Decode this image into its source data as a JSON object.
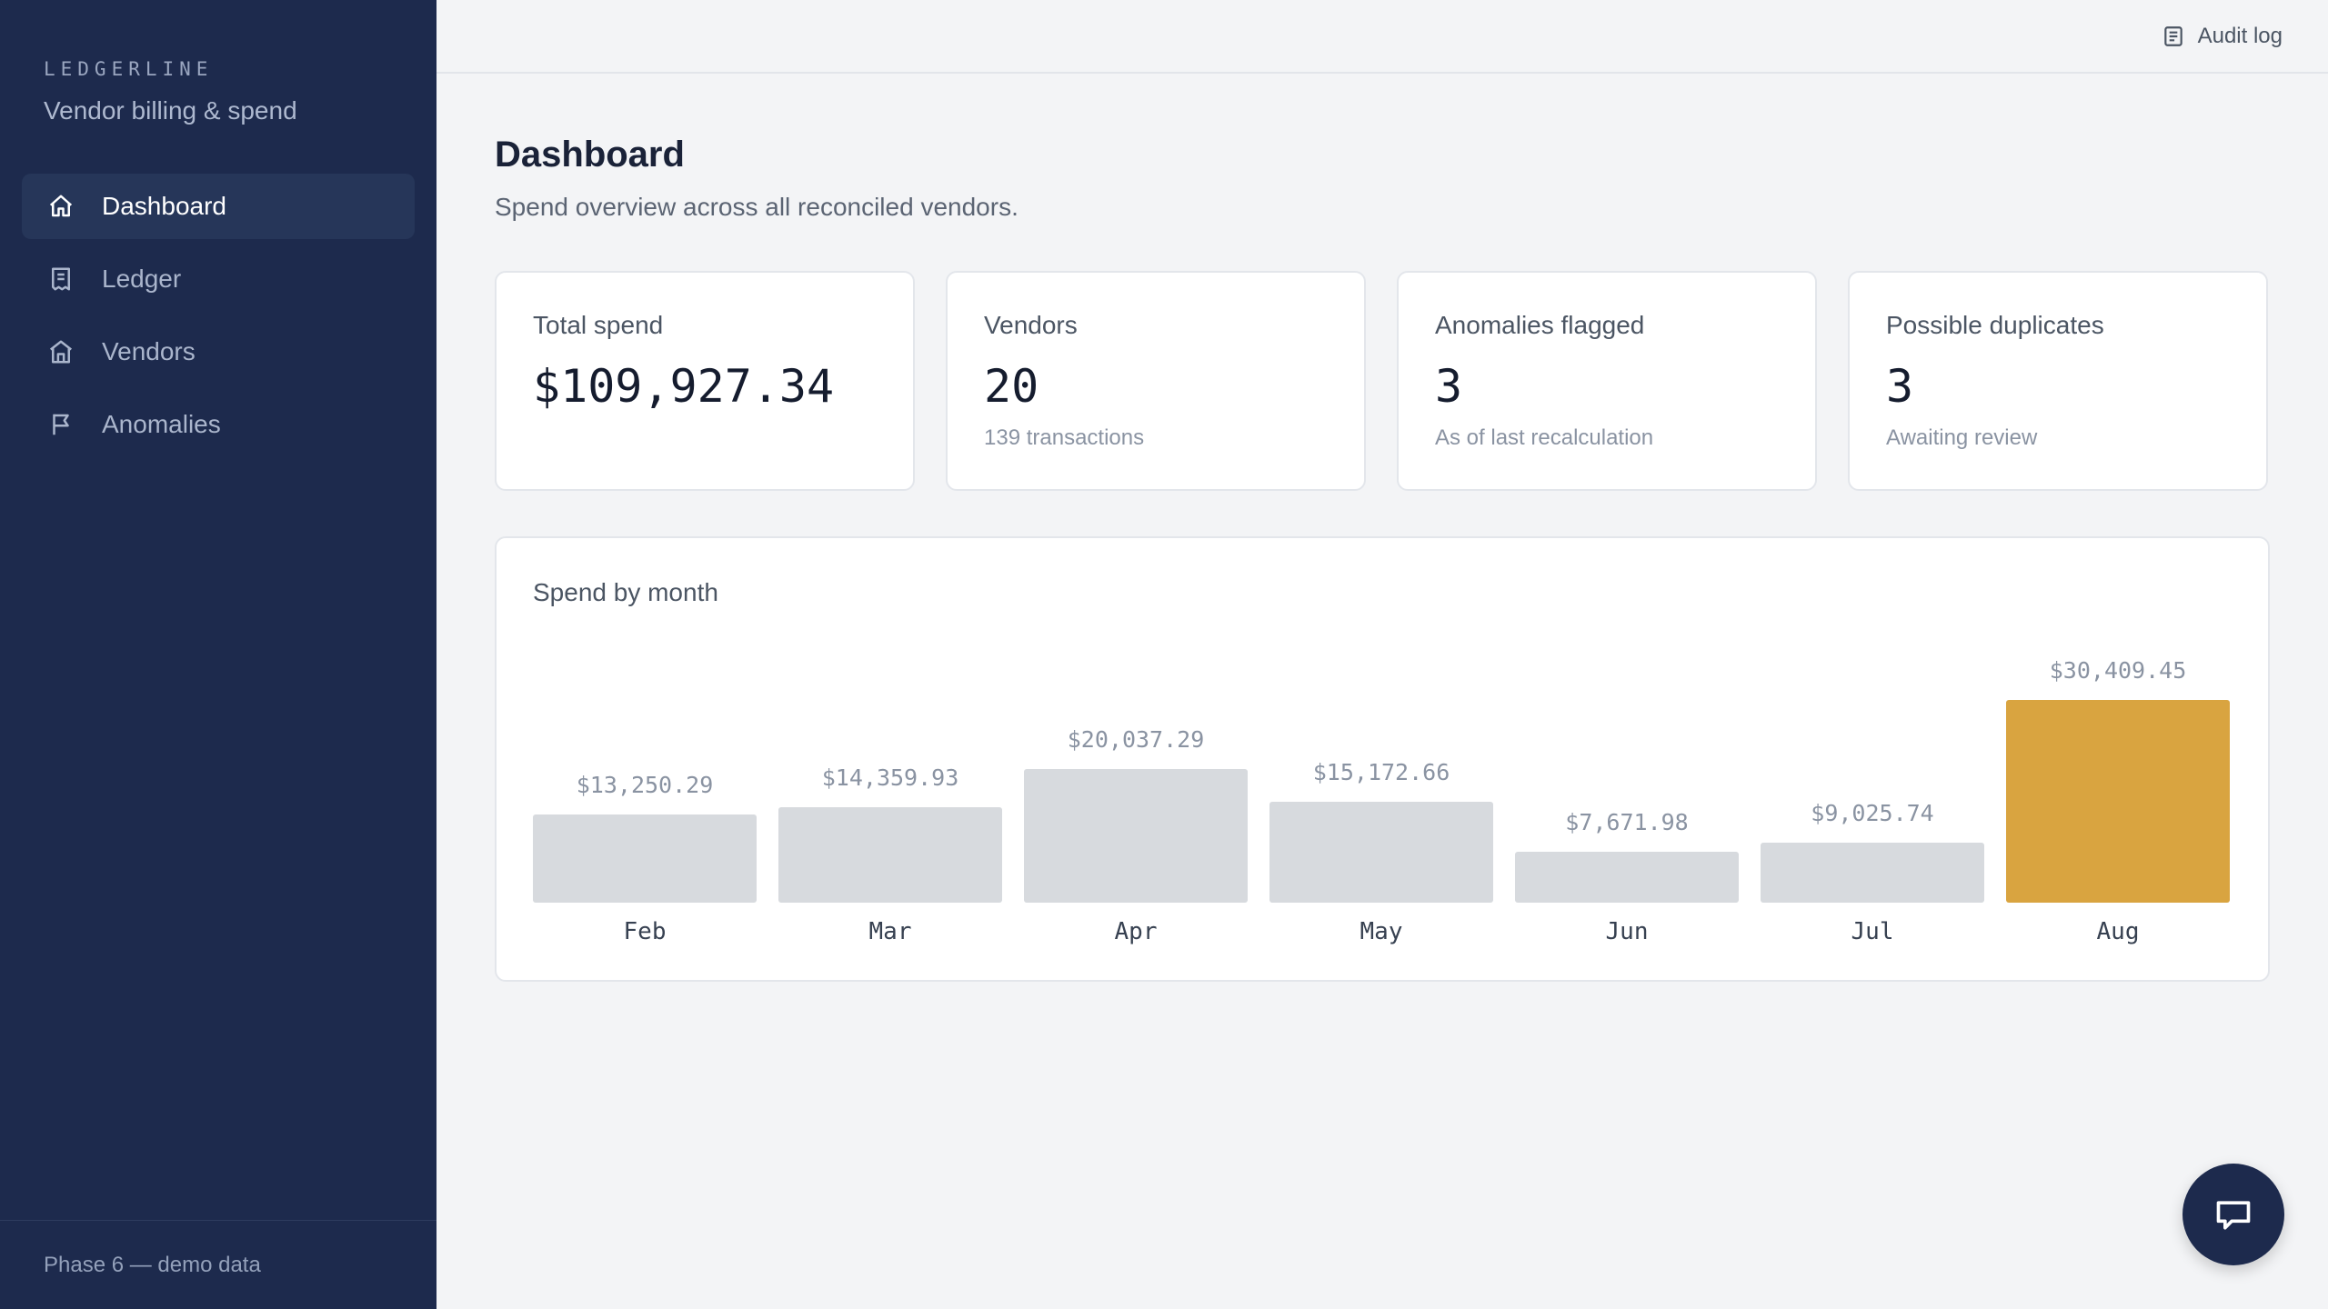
{
  "sidebar": {
    "brand": "LEDGERLINE",
    "subtitle": "Vendor billing & spend",
    "items": [
      {
        "label": "Dashboard",
        "icon": "home-icon",
        "active": true
      },
      {
        "label": "Ledger",
        "icon": "receipt-icon",
        "active": false
      },
      {
        "label": "Vendors",
        "icon": "store-icon",
        "active": false
      },
      {
        "label": "Anomalies",
        "icon": "flag-icon",
        "active": false
      }
    ],
    "footer": "Phase 6 — demo data"
  },
  "topbar": {
    "audit_label": "Audit log",
    "audit_icon": "document-list-icon"
  },
  "page": {
    "title": "Dashboard",
    "subtitle": "Spend overview across all reconciled vendors."
  },
  "cards": [
    {
      "label": "Total spend",
      "value": "$109,927.34",
      "note": ""
    },
    {
      "label": "Vendors",
      "value": "20",
      "note": "139 transactions"
    },
    {
      "label": "Anomalies flagged",
      "value": "3",
      "note": "As of last recalculation"
    },
    {
      "label": "Possible duplicates",
      "value": "3",
      "note": "Awaiting review"
    }
  ],
  "chart_title": "Spend by month",
  "chart_data": {
    "type": "bar",
    "title": "Spend by month",
    "categories": [
      "Feb",
      "Mar",
      "Apr",
      "May",
      "Jun",
      "Jul",
      "Aug"
    ],
    "values": [
      13250.29,
      14359.93,
      20037.29,
      15172.66,
      7671.98,
      9025.74,
      30409.45
    ],
    "value_labels": [
      "$13,250.29",
      "$14,359.93",
      "$20,037.29",
      "$15,172.66",
      "$7,671.98",
      "$9,025.74",
      "$30,409.45"
    ],
    "highlight_index": 6,
    "colors": {
      "bar": "#d7dade",
      "highlight": "#d9a440"
    }
  },
  "chat_icon": "chat-bubble-icon"
}
